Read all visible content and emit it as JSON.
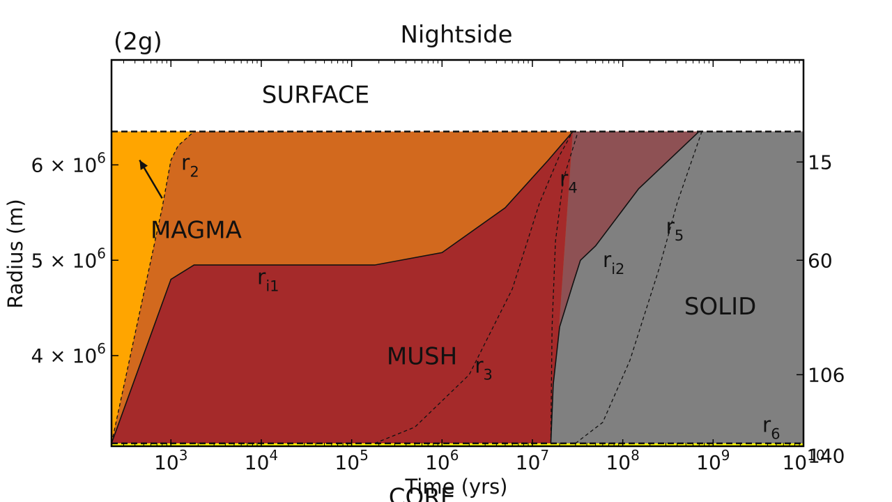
{
  "chart_data": {
    "type": "area",
    "panel_label": "(2g)",
    "title": "Nightside",
    "xlabel": "Time (yrs)",
    "ylabel": "Radius (m)",
    "xscale": "log",
    "yscale": "linear",
    "xlim": [
      220,
      10000000000
    ],
    "ylim": [
      3.05,
      7.1
    ],
    "y_unit_multiplier": 1000000,
    "x_ticks": [
      {
        "value": 1000,
        "label": "10",
        "exp": "3"
      },
      {
        "value": 10000,
        "label": "10",
        "exp": "4"
      },
      {
        "value": 100000,
        "label": "10",
        "exp": "5"
      },
      {
        "value": 1000000,
        "label": "10",
        "exp": "6"
      },
      {
        "value": 10000000,
        "label": "10",
        "exp": "7"
      },
      {
        "value": 100000000,
        "label": "10",
        "exp": "8"
      },
      {
        "value": 1000000000,
        "label": "10",
        "exp": "9"
      },
      {
        "value": 10000000000,
        "label": "10",
        "exp": "10"
      }
    ],
    "y_ticks_left": [
      {
        "value": 4,
        "label": "4 × 10",
        "exp": "6"
      },
      {
        "value": 5,
        "label": "5 × 10",
        "exp": "6"
      },
      {
        "value": 6,
        "label": "6 × 10",
        "exp": "6"
      }
    ],
    "y_ticks_right": [
      {
        "value": 6.03,
        "label": "15"
      },
      {
        "value": 5.0,
        "label": "60"
      },
      {
        "value": 3.8,
        "label": "106"
      },
      {
        "value": 2.95,
        "label": "140"
      }
    ],
    "surface_radius": 6.35,
    "core_radius": 3.08,
    "regions": [
      {
        "name": "SURFACE",
        "label": "SURFACE",
        "color": "#ffffff",
        "label_at": [
          40000,
          6.72
        ]
      },
      {
        "name": "MAGMA",
        "label": "MAGMA",
        "color": "#FFA500",
        "label_at": [
          1900,
          5.3
        ]
      },
      {
        "name": "magma-mush",
        "label": "",
        "color": "#D2691E"
      },
      {
        "name": "MUSH",
        "label": "MUSH",
        "color": "#A52A2A",
        "label_at": [
          600000,
          3.98
        ]
      },
      {
        "name": "mush-solid",
        "label": "",
        "color": "#8E5154"
      },
      {
        "name": "SOLID",
        "label": "SOLID",
        "color": "#808080",
        "label_at": [
          1200000000,
          4.5
        ]
      },
      {
        "name": "CORE",
        "label": "CORE",
        "color": "#FFFF00",
        "label_at": [
          600000,
          2.5
        ]
      }
    ],
    "series": [
      {
        "name": "r_i1",
        "label": "r",
        "sub": "i1",
        "style": "solid",
        "points": [
          [
            220,
            3.08
          ],
          [
            1000,
            4.8
          ],
          [
            1800,
            4.95
          ],
          [
            180000,
            4.95
          ],
          [
            1000000,
            5.08
          ],
          [
            5000000,
            5.55
          ],
          [
            15000000,
            6.05
          ],
          [
            28000000,
            6.35
          ]
        ],
        "label_at": [
          9000,
          4.75
        ]
      },
      {
        "name": "r_i2",
        "label": "r",
        "sub": "i2",
        "style": "solid",
        "points": [
          [
            16000000,
            3.08
          ],
          [
            17000000,
            3.7
          ],
          [
            20000000,
            4.3
          ],
          [
            28000000,
            4.75
          ],
          [
            34000000,
            5.0
          ],
          [
            50000000,
            5.15
          ],
          [
            150000000,
            5.75
          ],
          [
            700000000,
            6.35
          ]
        ],
        "label_at": [
          60000000,
          4.93
        ]
      },
      {
        "name": "r_2",
        "label": "r",
        "sub": "2",
        "style": "dashed",
        "points": [
          [
            220,
            3.08
          ],
          [
            800,
            5.55
          ],
          [
            1000,
            6.05
          ],
          [
            1200,
            6.2
          ],
          [
            1800,
            6.35
          ]
        ],
        "label_at": [
          1300,
          5.95
        ]
      },
      {
        "name": "r_3",
        "label": "r",
        "sub": "3",
        "style": "dashed",
        "points": [
          [
            180000,
            3.08
          ],
          [
            500000,
            3.25
          ],
          [
            2000000,
            3.8
          ],
          [
            6000000,
            4.7
          ],
          [
            12000000,
            5.6
          ],
          [
            20000000,
            6.1
          ],
          [
            28000000,
            6.35
          ]
        ],
        "label_at": [
          2300000,
          3.82
        ]
      },
      {
        "name": "r_4",
        "label": "r",
        "sub": "4",
        "style": "dashed",
        "points": [
          [
            16000000,
            3.08
          ],
          [
            16500000,
            4.3
          ],
          [
            18000000,
            5.2
          ],
          [
            22000000,
            5.85
          ],
          [
            32000000,
            6.35
          ]
        ],
        "label_at": [
          20000000,
          5.78
        ]
      },
      {
        "name": "r_5",
        "label": "r",
        "sub": "5",
        "style": "dashed",
        "points": [
          [
            30000000,
            3.08
          ],
          [
            60000000,
            3.3
          ],
          [
            120000000,
            3.95
          ],
          [
            250000000,
            4.9
          ],
          [
            400000000,
            5.6
          ],
          [
            750000000,
            6.35
          ]
        ],
        "label_at": [
          300000000,
          5.28
        ]
      },
      {
        "name": "r_6",
        "label": "r",
        "sub": "6",
        "style": "dashed",
        "points": [
          [
            30000000,
            3.08
          ],
          [
            10000000000,
            3.08
          ]
        ],
        "label_at": [
          3500000000,
          3.2
        ]
      }
    ],
    "annotations": [
      {
        "type": "arrow",
        "from": [
          800,
          5.65
        ],
        "to": [
          450,
          6.05
        ]
      }
    ]
  }
}
